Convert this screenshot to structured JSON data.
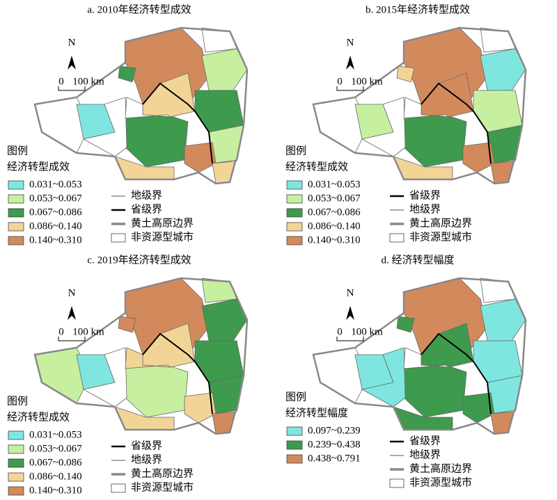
{
  "panels": [
    {
      "title": "a. 2010年经济转型成效",
      "north": "N",
      "scale": [
        "0",
        "100 km"
      ],
      "legend": {
        "heading": "图例",
        "title": "经济转型成效",
        "classes": [
          {
            "label": "0.031~0.053",
            "color": "#7fe6df"
          },
          {
            "label": "0.053~0.067",
            "color": "#c6f0a0"
          },
          {
            "label": "0.067~0.086",
            "color": "#3e9a4c"
          },
          {
            "label": "0.086~0.140",
            "color": "#f2d596"
          },
          {
            "label": "0.140~0.310",
            "color": "#d28a5c"
          }
        ],
        "lines": [
          "地级界",
          "省级界",
          "黄土高原边界",
          "非资源型城市"
        ]
      }
    },
    {
      "title": "b. 2015年经济转型成效",
      "north": "N",
      "scale": [
        "0",
        "100 km"
      ],
      "legend": {
        "heading": "图例",
        "title": "经济转型成效",
        "classes": [
          {
            "label": "0.031~0.053",
            "color": "#7fe6df"
          },
          {
            "label": "0.053~0.067",
            "color": "#c6f0a0"
          },
          {
            "label": "0.067~0.086",
            "color": "#3e9a4c"
          },
          {
            "label": "0.086~0.140",
            "color": "#f2d596"
          },
          {
            "label": "0.140~0.310",
            "color": "#d28a5c"
          }
        ],
        "lines": [
          "省级界",
          "地级界",
          "黄土高原边界",
          "非资源型城市"
        ]
      }
    },
    {
      "title": "c. 2019年经济转型成效",
      "north": "N",
      "scale": [
        "0",
        "100 km"
      ],
      "legend": {
        "heading": "图例",
        "title": "经济转型成效",
        "classes": [
          {
            "label": "0.031~0.053",
            "color": "#7fe6df"
          },
          {
            "label": "0.053~0.067",
            "color": "#c6f0a0"
          },
          {
            "label": "0.067~0.086",
            "color": "#3e9a4c"
          },
          {
            "label": "0.086~0.140",
            "color": "#f2d596"
          },
          {
            "label": "0.140~0.310",
            "color": "#d28a5c"
          }
        ],
        "lines": [
          "省级界",
          "地级界",
          "黄土高原边界",
          "非资源型城市"
        ]
      }
    },
    {
      "title": "d. 经济转型幅度",
      "north": "N",
      "scale": [
        "0",
        "100 km"
      ],
      "legend": {
        "heading": "图例",
        "title": "经济转型幅度",
        "classes": [
          {
            "label": "0.097~0.239",
            "color": "#7fe6df"
          },
          {
            "label": "0.239~0.438",
            "color": "#3e9a4c"
          },
          {
            "label": "0.438~0.791",
            "color": "#d28a5c"
          }
        ],
        "lines": [
          "省级界",
          "地级界",
          "黄土高原边界",
          "非资源型城市"
        ]
      }
    }
  ]
}
